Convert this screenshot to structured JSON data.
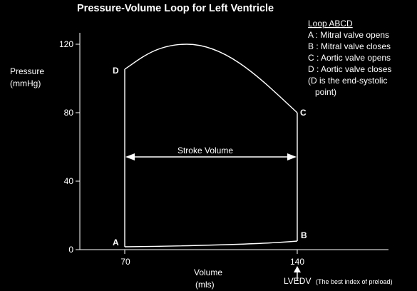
{
  "title": "Pressure-Volume Loop for Left Ventricle",
  "colors": {
    "background": "#000000",
    "foreground": "#ffffff"
  },
  "y_axis": {
    "label_line1": "Pressure",
    "label_line2": "(mmHg)",
    "ticks": [
      "120",
      "80",
      "40",
      "0"
    ]
  },
  "x_axis": {
    "label_line1": "Volume",
    "label_line2": "(mls)",
    "ticks": [
      "70",
      "140"
    ]
  },
  "points": {
    "A": "A",
    "B": "B",
    "C": "C",
    "D": "D"
  },
  "legend": {
    "heading": "Loop  ABCD",
    "items": [
      "A : Mitral valve opens",
      "B : Mitral valve closes",
      "C : Aortic valve opens",
      "D : Aortic valve closes"
    ],
    "note_line1": "(D is the end-systolic",
    "note_line2": "point)"
  },
  "stroke_volume_label": "Stroke Volume",
  "lvedv": {
    "label": "LVEDV",
    "note": "(The best index of preload)",
    "arrow_icon": "up-arrow-icon"
  }
}
